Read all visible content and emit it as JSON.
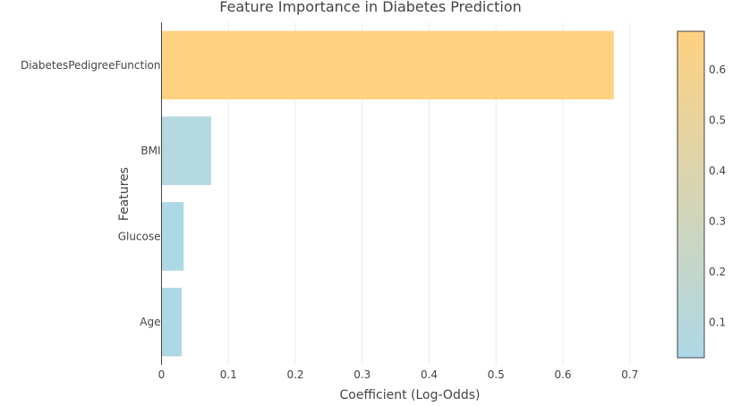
{
  "chart_data": {
    "type": "bar",
    "orientation": "horizontal",
    "title": "Feature Importance in Diabetes Prediction",
    "xlabel": "Coefficient (Log-Odds)",
    "ylabel": "Features",
    "categories": [
      "DiabetesPedigreeFunction",
      "BMI",
      "Glucose",
      "Age"
    ],
    "values": [
      0.676,
      0.074,
      0.033,
      0.03
    ],
    "xlim": [
      0,
      0.74
    ],
    "x_ticks": [
      0,
      0.1,
      0.2,
      0.3,
      0.4,
      0.5,
      0.6,
      0.7
    ],
    "x_tick_labels": [
      "0",
      "0.1",
      "0.2",
      "0.3",
      "0.4",
      "0.5",
      "0.6",
      "0.7"
    ],
    "grid": true,
    "colorscale": {
      "low": "#add8e6",
      "high": "#ffd180",
      "range": [
        0.03,
        0.676
      ],
      "ticks": [
        0.1,
        0.2,
        0.3,
        0.4,
        0.5,
        0.6
      ],
      "tick_labels": [
        "0.1",
        "0.2",
        "0.3",
        "0.4",
        "0.5",
        "0.6"
      ],
      "placement": "right"
    }
  }
}
